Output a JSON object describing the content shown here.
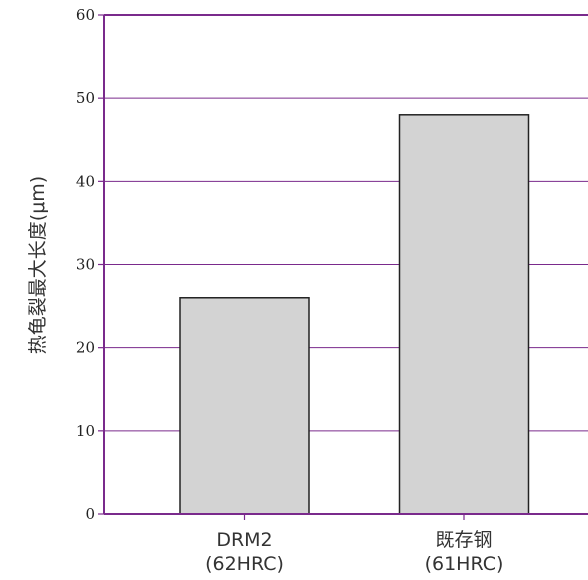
{
  "chart_data": {
    "type": "bar",
    "title": "",
    "xlabel": "",
    "ylabel": "热龟裂最大长度(μm)",
    "ylim": [
      0,
      60
    ],
    "yticks": [
      0,
      10,
      20,
      30,
      40,
      50,
      60
    ],
    "categories": [
      {
        "name": "DRM2",
        "sub": "(62HRC)"
      },
      {
        "name": "既存钢",
        "sub": "(61HRC)"
      }
    ],
    "values": [
      26,
      48
    ],
    "grid": true,
    "legend": "none",
    "colors": {
      "bar_fill": "#d3d3d3",
      "bar_stroke": "#222222",
      "grid": "#7a2a8c",
      "axis": "#7a2a8c"
    }
  }
}
